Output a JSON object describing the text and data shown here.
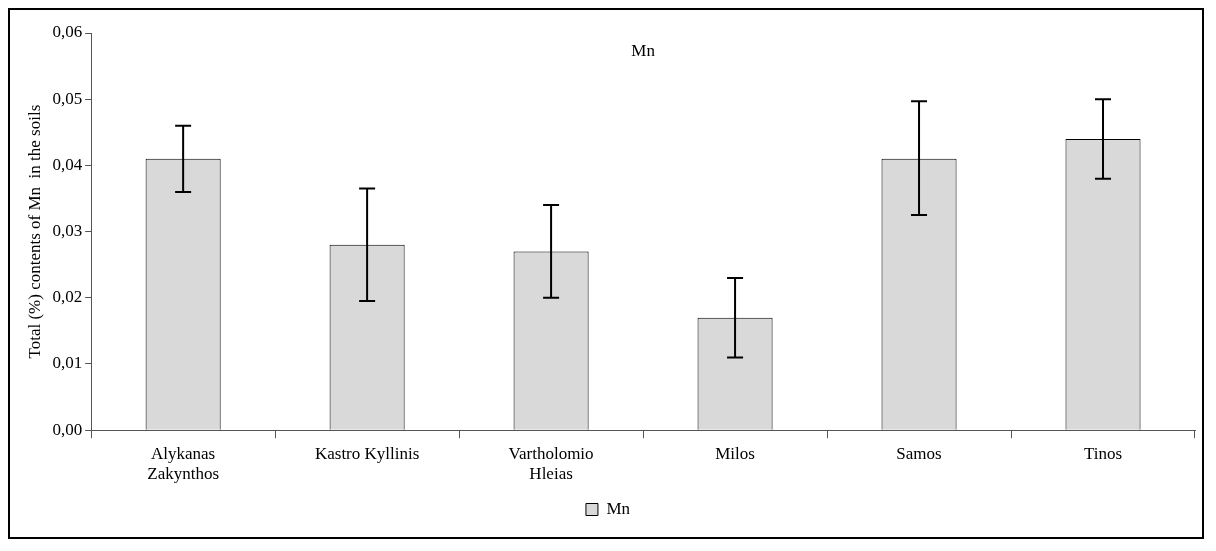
{
  "chart_data": {
    "type": "bar",
    "title": "Mn",
    "ylabel": "Total (%) contents of Mn  in the soils",
    "categories": [
      "Alykanas\nZakynthos",
      "Kastro Kyllinis",
      "Vartholomio\nHleias",
      "Milos",
      "Samos",
      "Tinos"
    ],
    "series": [
      {
        "name": "Mn",
        "color": "#d9d9d9",
        "values": [
          0.041,
          0.028,
          0.027,
          0.017,
          0.041,
          0.044
        ],
        "errors": [
          [
            0.036,
            0.046
          ],
          [
            0.0195,
            0.0365
          ],
          [
            0.02,
            0.034
          ],
          [
            0.011,
            0.023
          ],
          [
            0.0325,
            0.0497
          ],
          [
            0.038,
            0.05
          ]
        ]
      }
    ],
    "ylim": [
      0,
      0.06
    ],
    "yticks": [
      {
        "value": 0,
        "label": "0,00"
      },
      {
        "value": 0.01,
        "label": "0,01"
      },
      {
        "value": 0.02,
        "label": "0,02"
      },
      {
        "value": 0.03,
        "label": "0,03"
      },
      {
        "value": 0.04,
        "label": "0,04"
      },
      {
        "value": 0.05,
        "label": "0,05"
      },
      {
        "value": 0.06,
        "label": "0,06"
      }
    ],
    "grid": false,
    "legend": "bottom"
  }
}
